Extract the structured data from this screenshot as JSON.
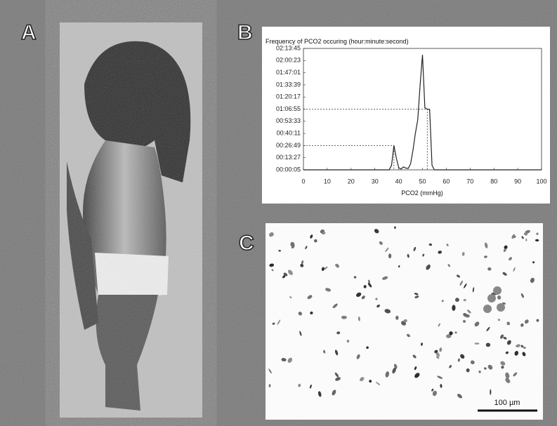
{
  "panels": {
    "a": {
      "label": "A"
    },
    "b": {
      "label": "B"
    },
    "c": {
      "label": "C",
      "scale_bar": "100 µm"
    }
  },
  "chart_data": {
    "type": "line",
    "title": "Frequency of PCO2 occuring (hour:minute:second)",
    "x_label": "PCO2 (mmHg)",
    "x": [
      0,
      35,
      36,
      37,
      38,
      39,
      40,
      41,
      42,
      43,
      44,
      45,
      46,
      47,
      48,
      49,
      50,
      51,
      52,
      53,
      54,
      55,
      100
    ],
    "series": [
      {
        "color": "#222222",
        "values": [
          5,
          5,
          5,
          300,
          1609,
          800,
          150,
          60,
          200,
          120,
          100,
          400,
          1300,
          2400,
          3300,
          5600,
          7600,
          4100,
          4015,
          4000,
          300,
          5,
          5
        ]
      }
    ],
    "reference_lines": [
      {
        "x": 38,
        "y": 1609
      },
      {
        "x": 52,
        "y": 4015
      }
    ],
    "xlim": [
      0,
      100
    ],
    "xticks": [
      0,
      10,
      20,
      30,
      40,
      50,
      60,
      70,
      80,
      90,
      100
    ],
    "ylim": [
      5,
      8025
    ],
    "yticks": [
      {
        "value": 5,
        "label": "00:00:05"
      },
      {
        "value": 807,
        "label": "00:13:27"
      },
      {
        "value": 1609,
        "label": "00:26:49"
      },
      {
        "value": 2411,
        "label": "00:40:11"
      },
      {
        "value": 3213,
        "label": "00:53:33"
      },
      {
        "value": 4015,
        "label": "01:06:55"
      },
      {
        "value": 4817,
        "label": "01:20:17"
      },
      {
        "value": 5619,
        "label": "01:33:39"
      },
      {
        "value": 6421,
        "label": "01:47:01"
      },
      {
        "value": 7223,
        "label": "02:00:23"
      },
      {
        "value": 8025,
        "label": "02:13:45"
      }
    ]
  }
}
